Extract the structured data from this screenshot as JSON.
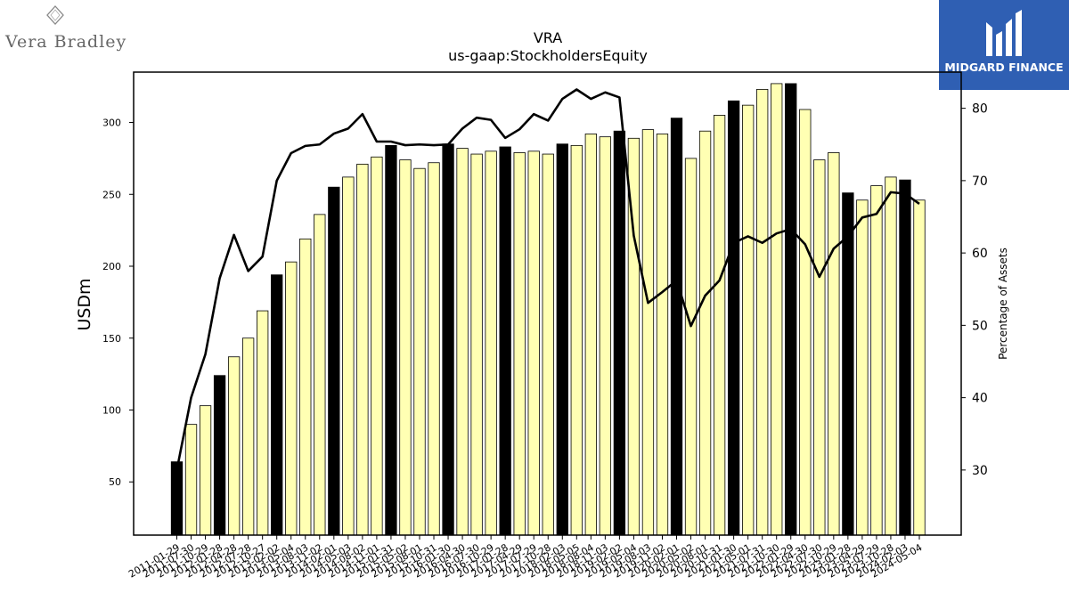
{
  "branding": {
    "left_logo_text": "Vera Bradley",
    "right_logo_text": "MIDGARD FINANCE",
    "right_logo_bg": "#2f5fb3"
  },
  "chart_data": {
    "type": "bar",
    "title": "VRA",
    "subtitle": "us-gaap:StockholdersEquity",
    "ylabel": "USDm",
    "y2label": "Percentage of Assets",
    "ylim": [
      13,
      335
    ],
    "y2lim": [
      21,
      85
    ],
    "yticks": [
      50,
      100,
      150,
      200,
      250,
      300
    ],
    "y2ticks": [
      30,
      40,
      50,
      60,
      70,
      80
    ],
    "grid": false,
    "bar_color": "#ffffb3",
    "highlight_color": "#000000",
    "line_color": "#000000",
    "categories": [
      "2011-01-29",
      "2011-07-30",
      "2011-10-29",
      "2012-01-28",
      "2012-04-28",
      "2012-07-28",
      "2012-10-27",
      "2013-02-02",
      "2013-05-04",
      "2013-08-03",
      "2013-11-02",
      "2014-02-01",
      "2014-05-03",
      "2014-08-02",
      "2014-11-01",
      "2015-01-31",
      "2015-05-02",
      "2015-08-01",
      "2015-10-31",
      "2016-01-30",
      "2016-04-30",
      "2016-07-30",
      "2016-10-29",
      "2017-01-28",
      "2017-04-29",
      "2017-07-29",
      "2017-10-28",
      "2018-02-03",
      "2018-05-05",
      "2018-08-04",
      "2018-11-03",
      "2019-02-02",
      "2019-05-04",
      "2019-08-03",
      "2019-11-02",
      "2020-02-01",
      "2020-05-02",
      "2020-08-01",
      "2020-10-31",
      "2021-01-30",
      "2021-05-01",
      "2021-07-31",
      "2021-10-30",
      "2022-01-29",
      "2022-04-30",
      "2022-07-30",
      "2022-10-29",
      "2023-01-28",
      "2023-04-29",
      "2023-07-29",
      "2023-10-28",
      "2024-02-03",
      "2024-05-04"
    ],
    "values": [
      64,
      90,
      103,
      124,
      137,
      150,
      169,
      194,
      203,
      219,
      236,
      255,
      262,
      271,
      276,
      284,
      274,
      268,
      272,
      285,
      282,
      278,
      280,
      283,
      279,
      280,
      278,
      285,
      284,
      292,
      290,
      294,
      289,
      295,
      292,
      303,
      275,
      294,
      305,
      315,
      312,
      323,
      327,
      327,
      309,
      274,
      279,
      251,
      246,
      256,
      262,
      260,
      246
    ],
    "highlight": [
      true,
      false,
      false,
      true,
      false,
      false,
      false,
      true,
      false,
      false,
      false,
      true,
      false,
      false,
      false,
      true,
      false,
      false,
      false,
      true,
      false,
      false,
      false,
      true,
      false,
      false,
      false,
      true,
      false,
      false,
      false,
      true,
      false,
      false,
      false,
      true,
      false,
      false,
      false,
      true,
      false,
      false,
      false,
      true,
      false,
      false,
      false,
      true,
      false,
      false,
      false,
      true,
      false
    ],
    "series": [
      {
        "name": "",
        "axis": "y2",
        "values": [
          30,
          40,
          46,
          56.5,
          62.5,
          57.5,
          59.5,
          70,
          73.8,
          74.8,
          75,
          76.5,
          77.2,
          79.2,
          75.4,
          75.4,
          74.9,
          75,
          74.9,
          75,
          77.2,
          78.7,
          78.4,
          75.9,
          77.1,
          79.2,
          78.3,
          81.3,
          82.6,
          81.3,
          82.2,
          81.5,
          62.4,
          53.1,
          54.6,
          56.2,
          49.9,
          54.1,
          56.2,
          61.4,
          62.3,
          61.4,
          62.7,
          63.3,
          61.2,
          56.7,
          60.6,
          62.3,
          64.9,
          65.4,
          68.4,
          68.2,
          66.8
        ]
      }
    ]
  }
}
